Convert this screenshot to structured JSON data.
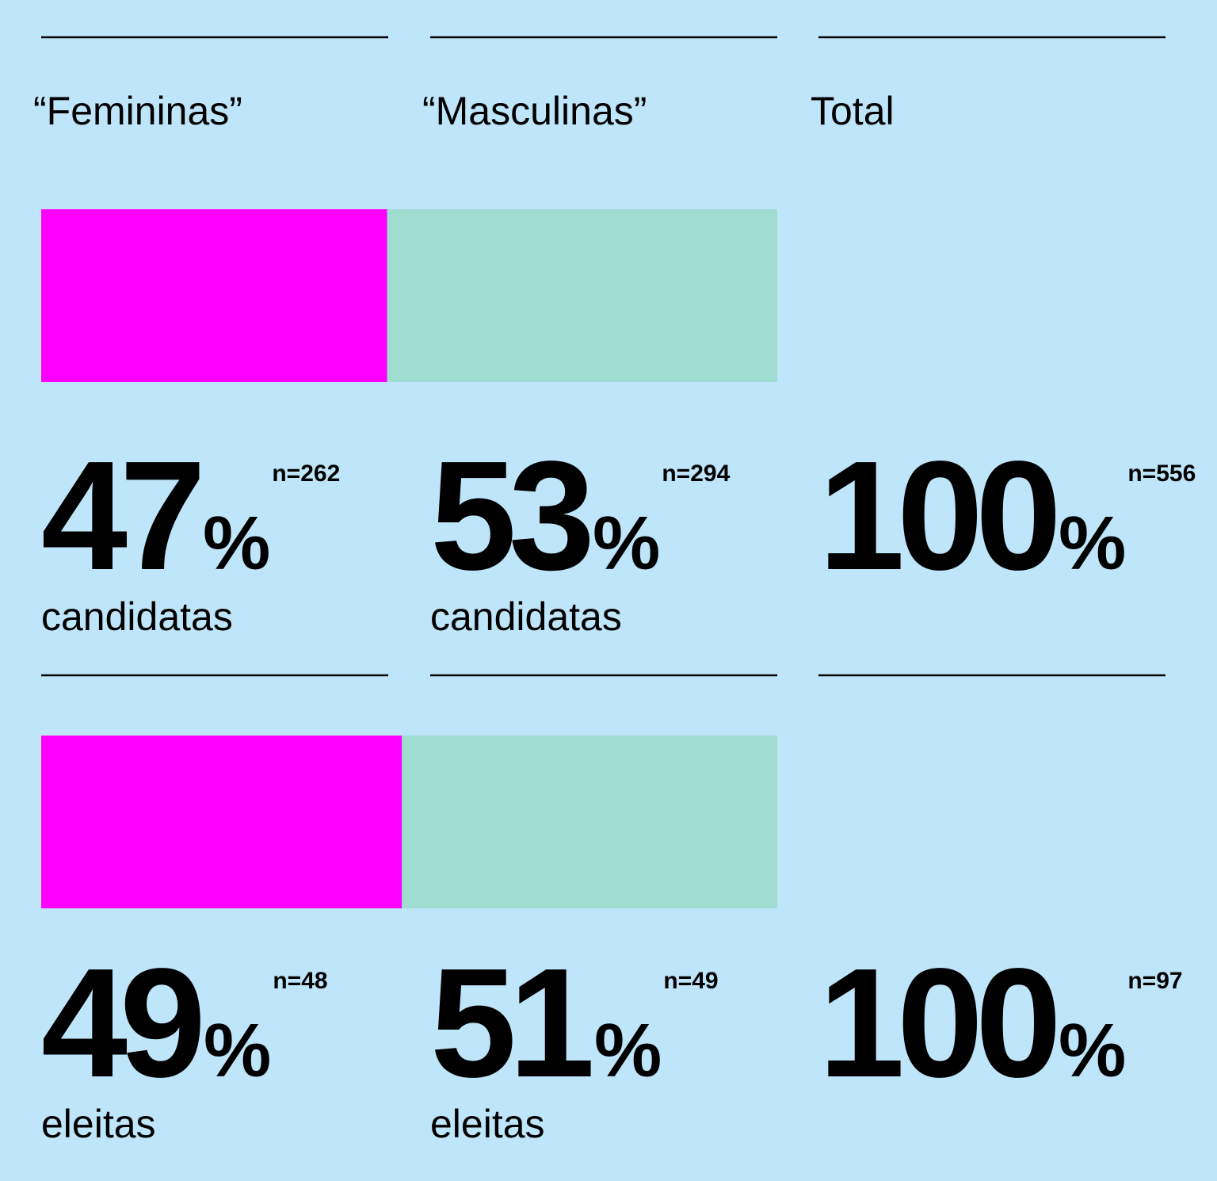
{
  "columns": [
    "“Femininas”",
    "“Masculinas”",
    "Total"
  ],
  "unit": "%",
  "colors": [
    "#ff00ff",
    "#9fddd0"
  ],
  "rows": [
    {
      "label": "candidatas",
      "cells": [
        {
          "value": 47,
          "n": "n=262"
        },
        {
          "value": 53,
          "n": "n=294"
        },
        {
          "value": 100,
          "n": "n=556"
        }
      ]
    },
    {
      "label": "eleitas",
      "cells": [
        {
          "value": 49,
          "n": "n=48"
        },
        {
          "value": 51,
          "n": "n=49"
        },
        {
          "value": 100,
          "n": "n=97"
        }
      ]
    }
  ]
}
